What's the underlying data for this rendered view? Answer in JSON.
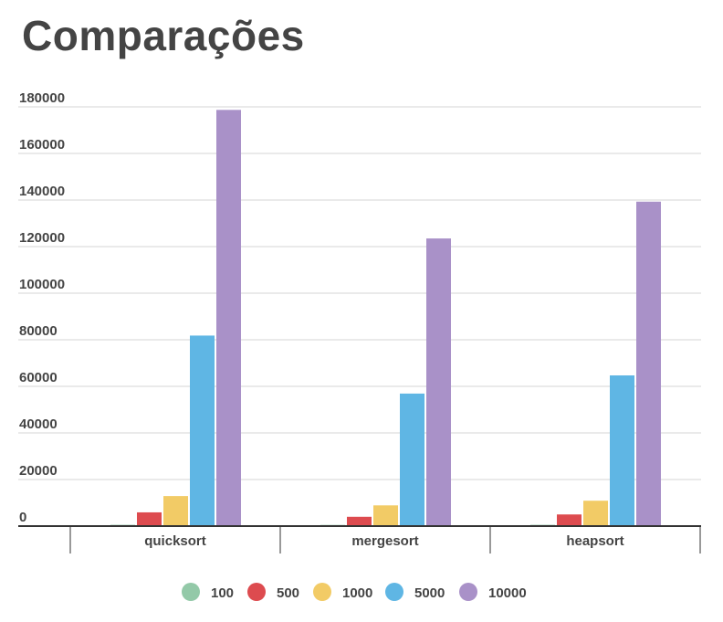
{
  "title": "Comparações",
  "chart_data": {
    "type": "bar",
    "title": "Comparações",
    "categories": [
      "quicksort",
      "mergesort",
      "heapsort"
    ],
    "series": [
      {
        "name": "100",
        "color": "#93c9a8",
        "values": [
          550,
          500,
          550
        ]
      },
      {
        "name": "500",
        "color": "#dd4b4f",
        "values": [
          5900,
          4000,
          5000
        ]
      },
      {
        "name": "1000",
        "color": "#f2cb66",
        "values": [
          12900,
          8900,
          10900
        ]
      },
      {
        "name": "5000",
        "color": "#5fb6e4",
        "values": [
          81800,
          56900,
          64700
        ]
      },
      {
        "name": "10000",
        "color": "#a991c8",
        "values": [
          178700,
          123500,
          139300
        ]
      }
    ],
    "ylim": [
      0,
      180000
    ],
    "yticks": [
      0,
      20000,
      40000,
      60000,
      80000,
      100000,
      120000,
      140000,
      160000,
      180000
    ],
    "ytick_labels": [
      "0",
      "20000",
      "40000",
      "60000",
      "80000",
      "100000",
      "120000",
      "140000",
      "160000",
      "180000"
    ],
    "xlabel": "",
    "ylabel": "",
    "grid": true,
    "legend_position": "bottom"
  }
}
